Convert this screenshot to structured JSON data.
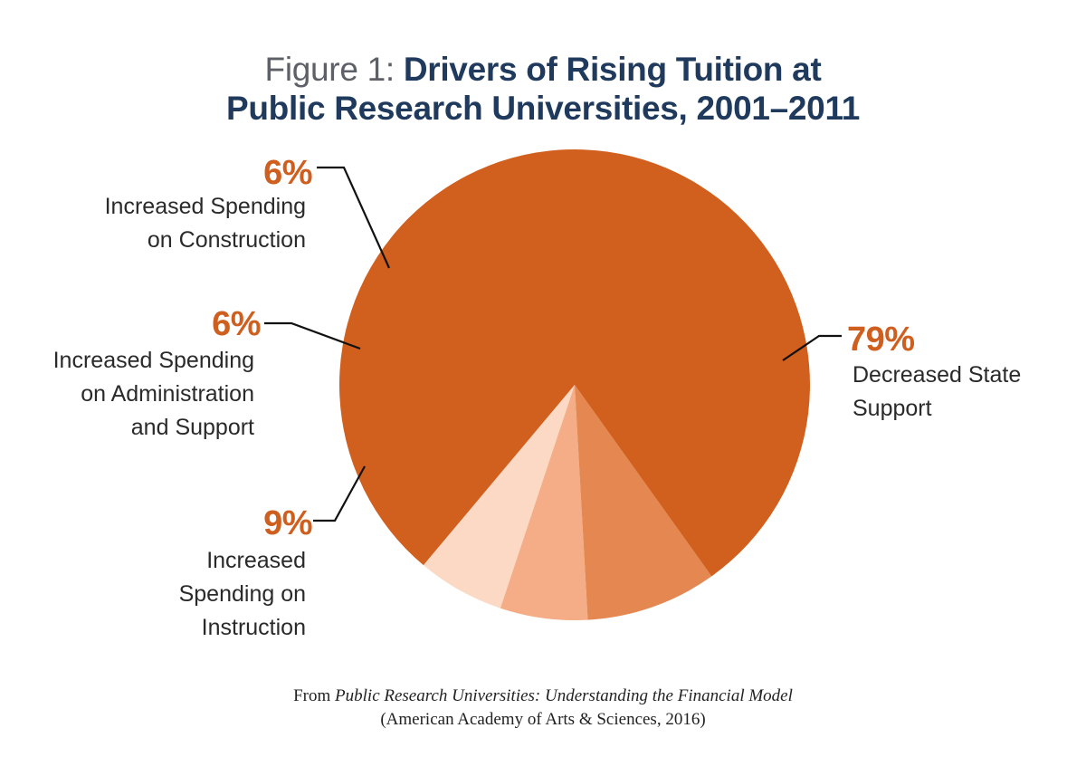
{
  "chart_data": {
    "type": "pie",
    "title_prefix": "Figure 1: ",
    "title": "Drivers of Rising Tuition at",
    "title_line2": "Public Research Universities, 2001–2011",
    "start_angle_deg": 230,
    "direction": "counterclockwise",
    "slices": [
      {
        "pct_label": "6%",
        "value": 6,
        "label": "Increased Spending\non Construction",
        "color": "#fbd9c5"
      },
      {
        "pct_label": "6%",
        "value": 6,
        "label": "Increased Spending\non Administration\nand Support",
        "color": "#f4ad86"
      },
      {
        "pct_label": "9%",
        "value": 9,
        "label": "Increased\nSpending on\nInstruction",
        "color": "#e48750"
      },
      {
        "pct_label": "79%",
        "value": 79,
        "label": "Decreased State\nSupport",
        "color": "#d15f1d"
      }
    ]
  },
  "source": {
    "prefix": "From ",
    "book": "Public Research Universities: Understanding the Financial Model",
    "publisher": "(American Academy of Arts & Sciences, 2016)"
  }
}
